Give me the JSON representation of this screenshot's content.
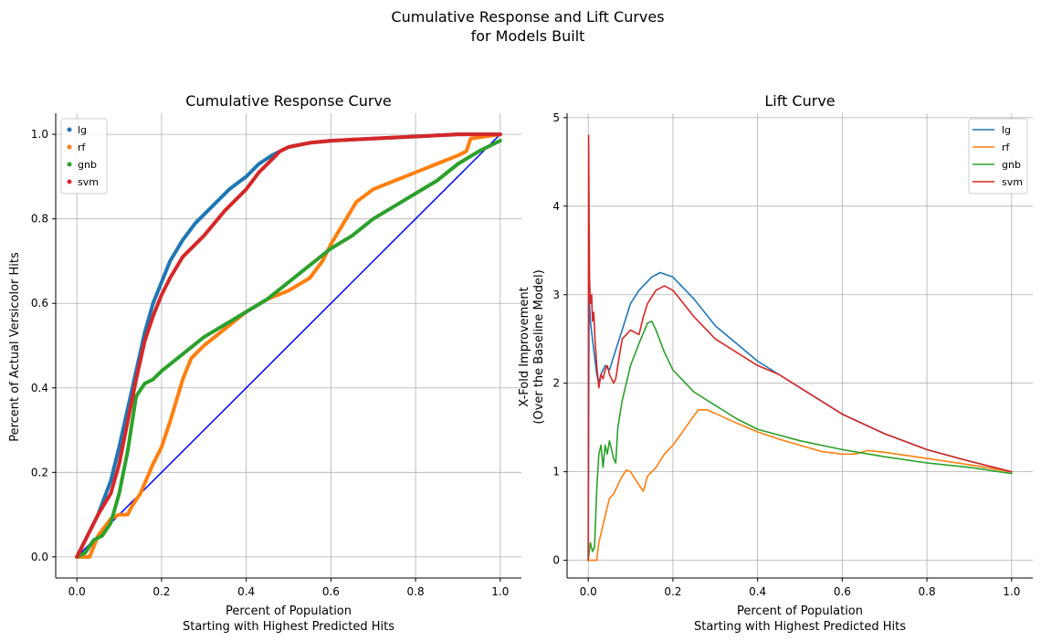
{
  "figure": {
    "suptitle_line1": "Cumulative Response and Lift Curves",
    "suptitle_line2": "for Models Built"
  },
  "chart_data": [
    {
      "type": "scatter",
      "title": "Cumulative Response Curve",
      "xlabel_line1": "Percent of Population",
      "xlabel_line2": "Starting with Highest Predicted Hits",
      "ylabel": "Percent of Actual Versicolor Hits",
      "xlim": [
        -0.05,
        1.05
      ],
      "ylim": [
        -0.05,
        1.05
      ],
      "xticks": [
        0.0,
        0.2,
        0.4,
        0.6,
        0.8,
        1.0
      ],
      "xtick_labels": [
        "0.0",
        "0.2",
        "0.4",
        "0.6",
        "0.8",
        "1.0"
      ],
      "yticks": [
        0.0,
        0.2,
        0.4,
        0.6,
        0.8,
        1.0
      ],
      "ytick_labels": [
        "0.0",
        "0.2",
        "0.4",
        "0.6",
        "0.8",
        "1.0"
      ],
      "grid": true,
      "legend_position": "top-left",
      "baseline": {
        "x": [
          0,
          1
        ],
        "y": [
          0,
          1
        ],
        "color": "#0000ff"
      },
      "series": [
        {
          "name": "lg",
          "color": "#1f77b4",
          "x": [
            0,
            0.05,
            0.08,
            0.1,
            0.12,
            0.14,
            0.16,
            0.18,
            0.2,
            0.22,
            0.25,
            0.28,
            0.3,
            0.33,
            0.36,
            0.4,
            0.43,
            0.46,
            0.48,
            0.5,
            0.55,
            0.6,
            0.7,
            0.8,
            0.9,
            1.0
          ],
          "y": [
            0,
            0.1,
            0.18,
            0.26,
            0.35,
            0.44,
            0.53,
            0.6,
            0.65,
            0.7,
            0.75,
            0.79,
            0.81,
            0.84,
            0.87,
            0.9,
            0.93,
            0.95,
            0.96,
            0.97,
            0.98,
            0.985,
            0.99,
            0.995,
            1.0,
            1.0
          ]
        },
        {
          "name": "rf",
          "color": "#ff7f0e",
          "x": [
            0,
            0.03,
            0.05,
            0.08,
            0.1,
            0.12,
            0.13,
            0.15,
            0.18,
            0.2,
            0.22,
            0.25,
            0.27,
            0.3,
            0.35,
            0.4,
            0.45,
            0.5,
            0.55,
            0.58,
            0.6,
            0.63,
            0.66,
            0.7,
            0.75,
            0.8,
            0.85,
            0.9,
            0.92,
            0.93,
            1.0
          ],
          "y": [
            0,
            0,
            0.05,
            0.09,
            0.1,
            0.1,
            0.12,
            0.15,
            0.22,
            0.26,
            0.32,
            0.42,
            0.47,
            0.5,
            0.54,
            0.58,
            0.61,
            0.63,
            0.66,
            0.7,
            0.74,
            0.79,
            0.84,
            0.87,
            0.89,
            0.91,
            0.93,
            0.95,
            0.96,
            0.99,
            1.0
          ]
        },
        {
          "name": "gnb",
          "color": "#2ca02c",
          "x": [
            0,
            0.02,
            0.04,
            0.06,
            0.08,
            0.1,
            0.12,
            0.14,
            0.16,
            0.18,
            0.2,
            0.25,
            0.3,
            0.35,
            0.4,
            0.45,
            0.5,
            0.55,
            0.6,
            0.65,
            0.7,
            0.75,
            0.8,
            0.85,
            0.9,
            0.95,
            1.0
          ],
          "y": [
            0,
            0.01,
            0.04,
            0.05,
            0.08,
            0.15,
            0.25,
            0.38,
            0.41,
            0.42,
            0.44,
            0.48,
            0.52,
            0.55,
            0.58,
            0.61,
            0.65,
            0.69,
            0.73,
            0.76,
            0.8,
            0.83,
            0.86,
            0.89,
            0.93,
            0.96,
            0.985
          ]
        },
        {
          "name": "svm",
          "color": "#d62728",
          "x": [
            0,
            0.02,
            0.05,
            0.08,
            0.1,
            0.12,
            0.14,
            0.16,
            0.18,
            0.2,
            0.22,
            0.25,
            0.3,
            0.35,
            0.4,
            0.43,
            0.46,
            0.48,
            0.5,
            0.55,
            0.6,
            0.7,
            0.8,
            0.9,
            1.0
          ],
          "y": [
            0,
            0.04,
            0.1,
            0.15,
            0.22,
            0.32,
            0.42,
            0.51,
            0.57,
            0.62,
            0.66,
            0.71,
            0.76,
            0.82,
            0.87,
            0.91,
            0.94,
            0.96,
            0.97,
            0.98,
            0.985,
            0.99,
            0.995,
            1.0,
            1.0
          ]
        }
      ]
    },
    {
      "type": "line",
      "title": "Lift Curve",
      "xlabel_line1": "Percent of Population",
      "xlabel_line2": "Starting with Highest Predicted Hits",
      "ylabel_line1": "X-Fold Improvement",
      "ylabel_line2": "(Over the Baseline Model)",
      "xlim": [
        -0.05,
        1.05
      ],
      "ylim": [
        -0.2,
        5.05
      ],
      "xticks": [
        0.0,
        0.2,
        0.4,
        0.6,
        0.8,
        1.0
      ],
      "xtick_labels": [
        "0.0",
        "0.2",
        "0.4",
        "0.6",
        "0.8",
        "1.0"
      ],
      "yticks": [
        0,
        1,
        2,
        3,
        4,
        5
      ],
      "ytick_labels": [
        "0",
        "1",
        "2",
        "3",
        "4",
        "5"
      ],
      "grid": true,
      "legend_position": "top-right",
      "series": [
        {
          "name": "lg",
          "color": "#1f77b4",
          "x": [
            0,
            0.002,
            0.005,
            0.01,
            0.015,
            0.02,
            0.025,
            0.03,
            0.04,
            0.05,
            0.06,
            0.08,
            0.1,
            0.12,
            0.15,
            0.17,
            0.2,
            0.25,
            0.3,
            0.35,
            0.4,
            0.45,
            0.5,
            0.6,
            0.7,
            0.8,
            0.9,
            1.0
          ],
          "y": [
            0,
            3.0,
            2.7,
            2.5,
            2.3,
            2.1,
            2.0,
            2.1,
            2.2,
            2.15,
            2.3,
            2.6,
            2.9,
            3.05,
            3.2,
            3.25,
            3.2,
            2.95,
            2.65,
            2.45,
            2.25,
            2.1,
            1.95,
            1.65,
            1.43,
            1.25,
            1.12,
            1.0
          ]
        },
        {
          "name": "rf",
          "color": "#ff7f0e",
          "x": [
            0,
            0.02,
            0.025,
            0.03,
            0.04,
            0.05,
            0.06,
            0.07,
            0.08,
            0.09,
            0.1,
            0.12,
            0.13,
            0.14,
            0.16,
            0.18,
            0.2,
            0.23,
            0.26,
            0.28,
            0.3,
            0.35,
            0.4,
            0.45,
            0.5,
            0.55,
            0.6,
            0.63,
            0.66,
            0.7,
            0.8,
            0.9,
            1.0
          ],
          "y": [
            0,
            0,
            0.2,
            0.3,
            0.5,
            0.7,
            0.75,
            0.85,
            0.95,
            1.02,
            1.0,
            0.85,
            0.78,
            0.95,
            1.05,
            1.2,
            1.3,
            1.5,
            1.7,
            1.7,
            1.66,
            1.55,
            1.45,
            1.37,
            1.3,
            1.23,
            1.2,
            1.2,
            1.24,
            1.22,
            1.15,
            1.08,
            1.0
          ]
        },
        {
          "name": "gnb",
          "color": "#2ca02c",
          "x": [
            0,
            0.005,
            0.01,
            0.015,
            0.02,
            0.025,
            0.03,
            0.035,
            0.04,
            0.045,
            0.05,
            0.055,
            0.06,
            0.065,
            0.07,
            0.08,
            0.09,
            0.1,
            0.12,
            0.14,
            0.15,
            0.16,
            0.18,
            0.2,
            0.25,
            0.3,
            0.35,
            0.4,
            0.5,
            0.6,
            0.7,
            0.8,
            0.9,
            1.0
          ],
          "y": [
            0,
            0.2,
            0.1,
            0.15,
            0.8,
            1.2,
            1.3,
            1.05,
            1.3,
            1.2,
            1.35,
            1.25,
            1.15,
            1.1,
            1.5,
            1.8,
            2.0,
            2.2,
            2.45,
            2.68,
            2.7,
            2.6,
            2.35,
            2.15,
            1.9,
            1.75,
            1.6,
            1.48,
            1.35,
            1.25,
            1.17,
            1.1,
            1.05,
            0.98
          ]
        },
        {
          "name": "svm",
          "color": "#d62728",
          "x": [
            0,
            0.001,
            0.002,
            0.003,
            0.005,
            0.008,
            0.01,
            0.013,
            0.016,
            0.02,
            0.025,
            0.03,
            0.035,
            0.04,
            0.045,
            0.05,
            0.06,
            0.065,
            0.07,
            0.08,
            0.09,
            0.1,
            0.12,
            0.13,
            0.14,
            0.16,
            0.18,
            0.2,
            0.25,
            0.3,
            0.35,
            0.4,
            0.45,
            0.5,
            0.6,
            0.7,
            0.8,
            0.9,
            1.0
          ],
          "y": [
            0,
            4.8,
            3.9,
            3.2,
            2.9,
            3.0,
            2.7,
            2.8,
            2.5,
            2.2,
            1.95,
            2.1,
            2.05,
            2.15,
            2.2,
            2.1,
            2.0,
            2.05,
            2.2,
            2.5,
            2.55,
            2.6,
            2.55,
            2.75,
            2.9,
            3.05,
            3.1,
            3.05,
            2.75,
            2.5,
            2.35,
            2.2,
            2.1,
            1.95,
            1.65,
            1.43,
            1.25,
            1.12,
            1.0
          ]
        }
      ]
    }
  ]
}
